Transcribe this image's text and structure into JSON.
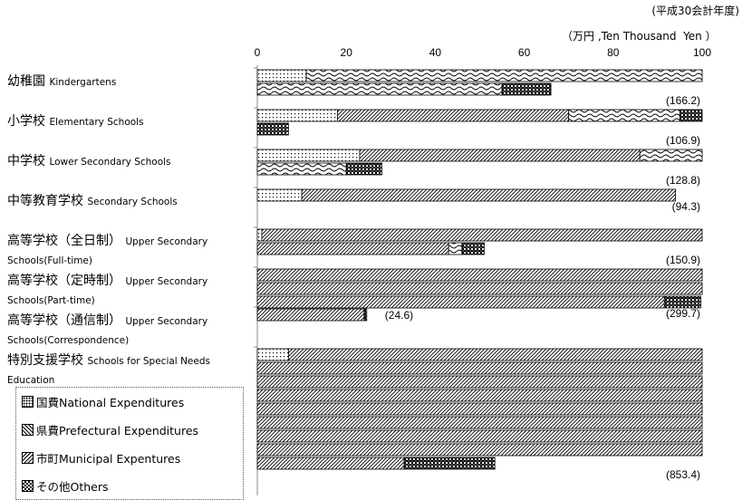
{
  "chart_data": {
    "type": "bar",
    "orientation": "horizontal",
    "stacked": true,
    "stack_basis": "wrapped rows of 100 units each",
    "title": "(平成30会計年度)",
    "unit_label": "（万円 ,Ten Thousand  Yen ）",
    "xlim": [
      0,
      100
    ],
    "x_ticks": [
      "0",
      "20",
      "40",
      "60",
      "80",
      "100"
    ],
    "grid": false,
    "legend_position": "bottom-left",
    "series": [
      {
        "name": "国費National Expenditures",
        "pattern": "dots"
      },
      {
        "name": "県費Prefectural Expenditures",
        "pattern": "diagonal"
      },
      {
        "name": "市町Municipal Expentures",
        "pattern": "wave"
      },
      {
        "name": "その他Others",
        "pattern": "checker"
      }
    ],
    "categories": [
      {
        "ja": "幼稚園",
        "en": "Kindergartens",
        "total": "(166.2)",
        "values": [
          11,
          0,
          144,
          11
        ]
      },
      {
        "ja": "小学校",
        "en": "Elementary Schools",
        "total": "(106.9)",
        "values": [
          18,
          52,
          25,
          12
        ]
      },
      {
        "ja": "中学校",
        "en": "Lower Secondary Schools",
        "total": "(128.8)",
        "values": [
          23,
          63,
          34,
          8
        ]
      },
      {
        "ja": "中等教育学校",
        "en": "Secondary Schools",
        "total": "(94.3)",
        "values": [
          10,
          84,
          0,
          0
        ]
      },
      {
        "ja": "高等学校（全日制）",
        "en": "Upper Secondary Schools(Full-time)",
        "total": "(150.9)",
        "values": [
          1,
          142,
          3,
          5
        ]
      },
      {
        "ja": "高等学校（定時制）",
        "en": "Upper Secondary Schools(Part-time)",
        "total": "(299.7)",
        "values": [
          0,
          291.5,
          0,
          8.2
        ]
      },
      {
        "ja": "高等学校（通信制）",
        "en": "Upper Secondary Schools(Correspondence)",
        "total": "(24.6)",
        "values": [
          0,
          24,
          0,
          0.6
        ]
      },
      {
        "ja": "特別支援学校",
        "en": "Schools for  Special Needs Education",
        "total": "(853.4)",
        "values": [
          7,
          826,
          0,
          20.4
        ]
      }
    ]
  }
}
